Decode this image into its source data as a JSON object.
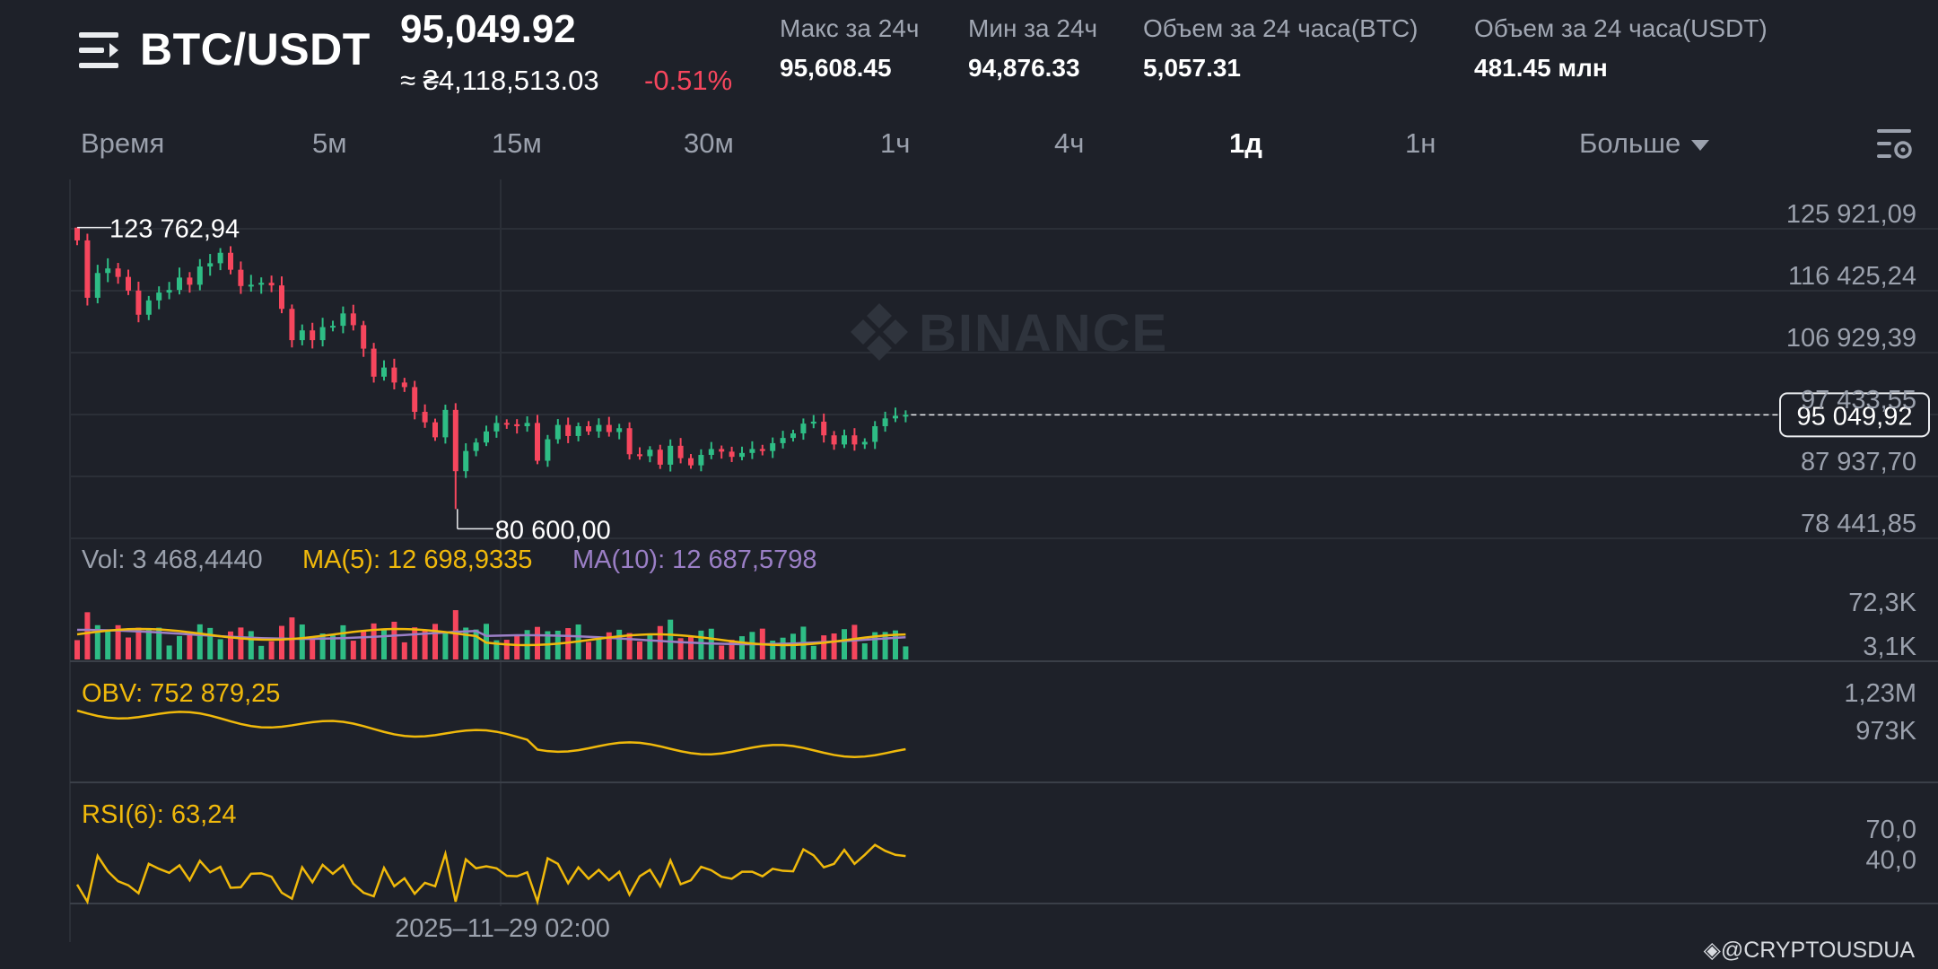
{
  "header": {
    "pair": "BTC/USDT",
    "price": "95,049.92",
    "fiat_price": "≈ ₴4,118,513.03",
    "change": "-0.51%",
    "stats": [
      {
        "label": "Макс за 24ч",
        "value": "95,608.45"
      },
      {
        "label": "Мин за 24ч",
        "value": "94,876.33"
      },
      {
        "label": "Объем за 24 часа(BTC)",
        "value": "5,057.31"
      },
      {
        "label": "Объем за 24 часа(USDT)",
        "value": "481.45 млн"
      }
    ]
  },
  "tabs": [
    "Время",
    "5м",
    "15м",
    "30м",
    "1ч",
    "4ч",
    "1д",
    "1н",
    "Больше"
  ],
  "active_tab": "1д",
  "watermark": "BINANCE",
  "credit": "@CRYPTOUSDUA",
  "colors": {
    "up": "#2ebd85",
    "down": "#f6465d",
    "ma5": "#f0b90b",
    "ma10": "#9b7fc6",
    "bg": "#1e2129",
    "grid": "#2b2f37"
  },
  "icons": {
    "menu": "menu-lines-icon",
    "settings": "chart-settings-icon",
    "logo": "binance-diamond-icon"
  },
  "chart_data": {
    "type": "candlestick",
    "price_axis_labels": [
      "125 921,09",
      "116 425,24",
      "106 929,39",
      "97 433,55",
      "87 937,70",
      "78 441,85"
    ],
    "price_axis": [
      125921.09,
      116425.24,
      106929.39,
      97433.55,
      87937.7,
      78441.85
    ],
    "current_price_label": "95 049,92",
    "current_price": 95049.92,
    "high_marker": "123 762,94",
    "high": 123762.94,
    "low_marker": "80 600,00",
    "low": 80600.0,
    "x_label": "2025–11–29 02:00",
    "volume": {
      "label": "Vol: 3 468,4440",
      "ma5_label": "MA(5): 12 698,9335",
      "ma10_label": "MA(10): 12 687,5798",
      "axis_labels": [
        "72,3K",
        "3,1K"
      ]
    },
    "obv": {
      "label": "OBV: 752 879,25",
      "axis_labels": [
        "1,23M",
        "973K"
      ]
    },
    "rsi": {
      "label": "RSI(6): 63,24",
      "axis_labels": [
        "70,0",
        "40,0"
      ]
    },
    "closes": [
      121800,
      113000,
      116800,
      117500,
      116200,
      114100,
      110400,
      112600,
      113800,
      114200,
      116100,
      115000,
      117800,
      118300,
      119900,
      117300,
      114800,
      115000,
      115300,
      114900,
      111300,
      106500,
      108000,
      106500,
      108500,
      108700,
      110600,
      108800,
      105200,
      100900,
      102300,
      100000,
      99300,
      95500,
      93900,
      91600,
      95800,
      86400,
      89500,
      90800,
      92500,
      93800,
      93600,
      93300,
      93800,
      88000,
      91300,
      93500,
      91800,
      93300,
      92500,
      93500,
      92400,
      93000,
      89000,
      88700,
      89700,
      87400,
      90300,
      88400,
      87300,
      88900,
      89800,
      89400,
      88600,
      89200,
      89800,
      89500,
      90700,
      91500,
      92200,
      93700,
      94000,
      91900,
      90500,
      91900,
      90500,
      90900,
      93300,
      94500,
      94900,
      95050
    ]
  }
}
